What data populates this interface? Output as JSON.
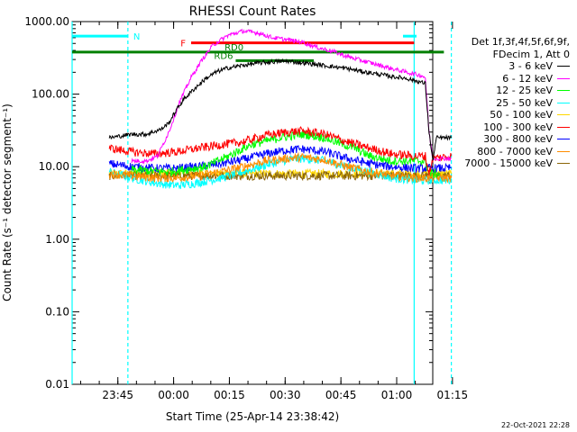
{
  "chart_data": {
    "type": "line",
    "title": "RHESSI Count Rates",
    "xlabel": "Start Time (25-Apr-14 23:38:42)",
    "ylabel": "Count Rate (s⁻¹ detector segment⁻¹)",
    "yscale": "log",
    "ylim": [
      0.01,
      1000
    ],
    "y_tick_labels": [
      "1000.00",
      "100.00",
      "10.00",
      "1.00",
      "0.10",
      "0.01"
    ],
    "x_range_minutes": [
      -6,
      91
    ],
    "x_ticks": [
      "23:45",
      "00:00",
      "00:15",
      "00:30",
      "00:45",
      "01:00",
      "01:15"
    ],
    "legend_header": [
      "Det 1f,3f,4f,5f,6f,9f,",
      "FDecim 1, Att 0"
    ],
    "series": [
      {
        "name": "3 - 6 keV",
        "color": "#000000",
        "points": [
          [
            4,
            25
          ],
          [
            10,
            28
          ],
          [
            14,
            28
          ],
          [
            18,
            33
          ],
          [
            20,
            40
          ],
          [
            22,
            60
          ],
          [
            24,
            85
          ],
          [
            27,
            120
          ],
          [
            30,
            165
          ],
          [
            33,
            205
          ],
          [
            36,
            230
          ],
          [
            40,
            250
          ],
          [
            44,
            268
          ],
          [
            48,
            280
          ],
          [
            52,
            285
          ],
          [
            56,
            270
          ],
          [
            60,
            255
          ],
          [
            64,
            240
          ],
          [
            68,
            225
          ],
          [
            72,
            205
          ],
          [
            76,
            190
          ],
          [
            80,
            175
          ],
          [
            84,
            165
          ],
          [
            88,
            145
          ],
          [
            89,
            140
          ],
          [
            90,
            30
          ],
          [
            91,
            12
          ],
          [
            92,
            25
          ],
          [
            96,
            25
          ]
        ]
      },
      {
        "name": "6 - 12 keV",
        "color": "#ff00ff",
        "points": [
          [
            10,
            12
          ],
          [
            14,
            12
          ],
          [
            17,
            14
          ],
          [
            20,
            30
          ],
          [
            23,
            80
          ],
          [
            26,
            170
          ],
          [
            29,
            300
          ],
          [
            32,
            480
          ],
          [
            36,
            650
          ],
          [
            40,
            740
          ],
          [
            44,
            700
          ],
          [
            48,
            600
          ],
          [
            52,
            560
          ],
          [
            56,
            520
          ],
          [
            60,
            440
          ],
          [
            64,
            390
          ],
          [
            68,
            330
          ],
          [
            72,
            290
          ],
          [
            76,
            255
          ],
          [
            80,
            225
          ],
          [
            84,
            200
          ],
          [
            88,
            180
          ],
          [
            89,
            170
          ],
          [
            90,
            30
          ],
          [
            91,
            13
          ],
          [
            96,
            13
          ]
        ]
      },
      {
        "name": "12 - 25 keV",
        "color": "#00ff00",
        "points": [
          [
            10,
            9
          ],
          [
            20,
            8.5
          ],
          [
            30,
            10
          ],
          [
            36,
            14
          ],
          [
            42,
            20
          ],
          [
            50,
            25
          ],
          [
            56,
            28
          ],
          [
            62,
            25
          ],
          [
            66,
            21
          ],
          [
            70,
            18
          ],
          [
            74,
            14
          ],
          [
            80,
            12
          ],
          [
            86,
            12
          ],
          [
            89,
            12
          ],
          [
            90,
            8
          ],
          [
            93,
            8
          ]
        ]
      },
      {
        "name": "25 - 50 keV",
        "color": "#00ffff",
        "points": [
          [
            4,
            8.5
          ],
          [
            10,
            7
          ],
          [
            16,
            6
          ],
          [
            22,
            5.5
          ],
          [
            28,
            6
          ],
          [
            34,
            7
          ],
          [
            40,
            8.5
          ],
          [
            46,
            10.5
          ],
          [
            52,
            12.5
          ],
          [
            56,
            13
          ],
          [
            62,
            12
          ],
          [
            68,
            10
          ],
          [
            74,
            8.5
          ],
          [
            80,
            7
          ],
          [
            86,
            6.5
          ],
          [
            89,
            6.5
          ],
          [
            96,
            6.5
          ]
        ]
      },
      {
        "name": "50 - 100 keV",
        "color": "#ffd700",
        "points": [
          [
            4,
            8
          ],
          [
            96,
            8
          ]
        ]
      },
      {
        "name": "100 - 300 keV",
        "color": "#ff0000",
        "points": [
          [
            4,
            18
          ],
          [
            10,
            16
          ],
          [
            16,
            15
          ],
          [
            22,
            16
          ],
          [
            28,
            18
          ],
          [
            34,
            20
          ],
          [
            40,
            22
          ],
          [
            46,
            27
          ],
          [
            52,
            30
          ],
          [
            56,
            31
          ],
          [
            62,
            28
          ],
          [
            68,
            22
          ],
          [
            74,
            18
          ],
          [
            80,
            15
          ],
          [
            86,
            14
          ],
          [
            89,
            14
          ],
          [
            90,
            8
          ],
          [
            91,
            13
          ],
          [
            96,
            14
          ]
        ]
      },
      {
        "name": "300 - 800 keV",
        "color": "#0000ff",
        "points": [
          [
            4,
            11
          ],
          [
            10,
            10
          ],
          [
            16,
            9.5
          ],
          [
            22,
            9.5
          ],
          [
            28,
            10
          ],
          [
            34,
            11
          ],
          [
            40,
            12.5
          ],
          [
            46,
            15
          ],
          [
            52,
            17
          ],
          [
            56,
            17.5
          ],
          [
            62,
            16
          ],
          [
            68,
            13
          ],
          [
            74,
            11
          ],
          [
            80,
            10
          ],
          [
            86,
            9.5
          ],
          [
            89,
            9.5
          ],
          [
            96,
            9.5
          ]
        ]
      },
      {
        "name": "800 - 7000 keV",
        "color": "#ff8c00",
        "points": [
          [
            4,
            8
          ],
          [
            10,
            7.5
          ],
          [
            16,
            7
          ],
          [
            22,
            7
          ],
          [
            28,
            7.5
          ],
          [
            34,
            8.5
          ],
          [
            40,
            10
          ],
          [
            46,
            12
          ],
          [
            52,
            13
          ],
          [
            56,
            13.5
          ],
          [
            62,
            12.5
          ],
          [
            68,
            10
          ],
          [
            74,
            8.5
          ],
          [
            80,
            7.5
          ],
          [
            86,
            7
          ],
          [
            89,
            7
          ],
          [
            96,
            7
          ]
        ]
      },
      {
        "name": "7000 - 15000 keV",
        "color": "#8b6508",
        "points": [
          [
            4,
            7.5
          ],
          [
            96,
            7.5
          ]
        ]
      }
    ],
    "annotations": {
      "bars": [
        {
          "label": "N",
          "color": "#00ffff",
          "y": 630,
          "segments": [
            [
              -6,
              9
            ],
            [
              83,
              94
            ]
          ]
        },
        {
          "label": "F",
          "color": "#ff0000",
          "y": 510,
          "segments": [
            [
              26,
              86
            ]
          ]
        },
        {
          "label": "RD0",
          "color": "#008000",
          "y": 380,
          "segments": [
            [
              -6,
              93
            ],
            [
              94,
              100
            ]
          ]
        },
        {
          "label": "RD6",
          "color": "#008000",
          "y": 290,
          "segments": [
            [
              38,
              59
            ]
          ]
        }
      ],
      "vlines": [
        {
          "color": "#00ffff",
          "x": -6,
          "style": "solid"
        },
        {
          "color": "#00ffff",
          "x": 9,
          "style": "dashed"
        },
        {
          "color": "#00ffff",
          "x": 86,
          "style": "solid"
        },
        {
          "color": "#00ffff",
          "x": 96,
          "style": "dashed"
        }
      ]
    }
  },
  "footer": {
    "stamp": "22-Oct-2021 22:28"
  }
}
